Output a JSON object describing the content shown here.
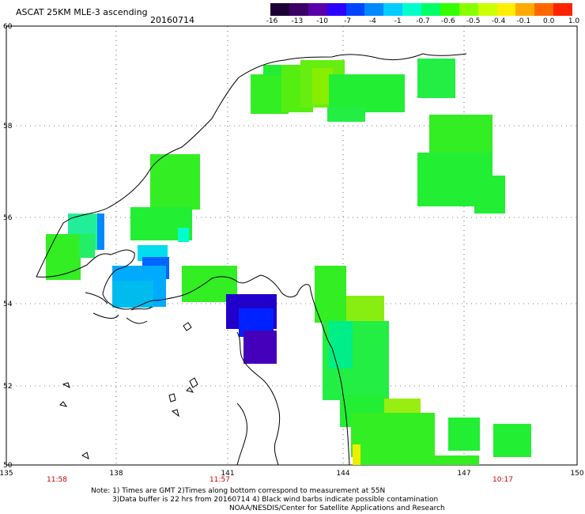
{
  "header": {
    "title": "ASCAT 25KM MLE-3 ascending",
    "date": "20160714"
  },
  "colorbar": {
    "labels": [
      "-16",
      "-13",
      "-10",
      "-7",
      "-4",
      "-1",
      "-0.7",
      "-0.6",
      "-0.5",
      "-0.4",
      "-0.1",
      "0.0",
      "1.0"
    ],
    "colors": [
      "#1a0033",
      "#3a0066",
      "#5a00aa",
      "#2a00ff",
      "#0044ff",
      "#0088ff",
      "#00ccff",
      "#00ffcc",
      "#00ff66",
      "#33ff00",
      "#88ff00",
      "#ccff00",
      "#ffee00",
      "#ffaa00",
      "#ff6600",
      "#ff2200"
    ]
  },
  "axes": {
    "lon_ticks": [
      "135",
      "138",
      "141",
      "144",
      "147",
      "150"
    ],
    "lat_ticks": [
      "60",
      "58",
      "56",
      "54",
      "52",
      "50"
    ],
    "times": [
      "11:58",
      "11:57",
      "10:17"
    ]
  },
  "notes": {
    "line1": "Note: 1) Times are GMT 2)Times along bottom correspond to measurement at 55N",
    "line2": "3)Data buffer is 22 hrs from 20160714 4) Black wind barbs indicate possible contamination",
    "line3": "NOAA/NESDIS/Center for Satellite Applications and Research"
  },
  "colors": {
    "frame": "#000000",
    "time_text": "#cc0000"
  }
}
